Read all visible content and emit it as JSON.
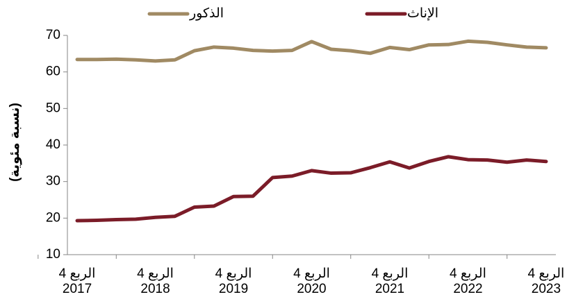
{
  "chart_data": {
    "type": "line",
    "y_label": "(نسبة مئوية)",
    "categories": [
      [
        "الربع 4",
        "2017"
      ],
      null,
      null,
      null,
      [
        "الربع 4",
        "2018"
      ],
      null,
      null,
      null,
      [
        "الربع 4",
        "2019"
      ],
      null,
      null,
      null,
      [
        "الربع 4",
        "2020"
      ],
      null,
      null,
      null,
      [
        "الربع 4",
        "2021"
      ],
      null,
      null,
      null,
      [
        "الربع 4",
        "2022"
      ],
      null,
      null,
      null,
      [
        "الربع 4",
        "2023"
      ]
    ],
    "series": [
      {
        "name": "الذكور",
        "color": "#a08a63",
        "values": [
          63.4,
          63.4,
          63.5,
          63.3,
          63.0,
          63.3,
          65.8,
          66.8,
          66.5,
          65.9,
          65.7,
          65.9,
          68.3,
          66.2,
          65.8,
          65.1,
          66.7,
          66.1,
          67.4,
          67.5,
          68.4,
          68.1,
          67.4,
          66.8,
          66.6
        ]
      },
      {
        "name": "الإناث",
        "color": "#7b1c28",
        "values": [
          19.3,
          19.4,
          19.6,
          19.7,
          20.2,
          20.5,
          23.0,
          23.3,
          25.9,
          26.0,
          31.1,
          31.5,
          33.0,
          32.3,
          32.4,
          33.8,
          35.4,
          33.7,
          35.5,
          36.8,
          36.0,
          35.9,
          35.3,
          35.9,
          35.5
        ]
      }
    ],
    "ylim": [
      10,
      70
    ],
    "yticks": [
      10,
      20,
      30,
      40,
      50,
      60,
      70
    ]
  }
}
